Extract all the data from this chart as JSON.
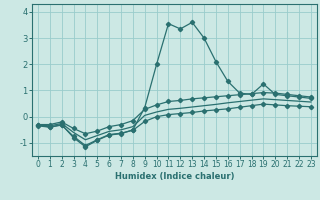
{
  "xlabel": "Humidex (Indice chaleur)",
  "bg_color": "#cce8e4",
  "grid_color": "#99cccc",
  "line_color": "#2a7070",
  "x_values": [
    0,
    1,
    2,
    3,
    4,
    5,
    6,
    7,
    8,
    9,
    10,
    11,
    12,
    13,
    14,
    15,
    16,
    17,
    18,
    19,
    20,
    21,
    22,
    23
  ],
  "series": {
    "main": [
      -0.3,
      -0.4,
      -0.3,
      -0.8,
      -1.15,
      -0.9,
      -0.7,
      -0.65,
      -0.5,
      0.35,
      2.0,
      3.55,
      3.35,
      3.6,
      3.0,
      2.1,
      1.35,
      0.9,
      0.85,
      1.25,
      0.85,
      0.8,
      0.75,
      0.7
    ],
    "upper": [
      -0.3,
      -0.3,
      -0.2,
      -0.45,
      -0.65,
      -0.55,
      -0.38,
      -0.3,
      -0.15,
      0.28,
      0.45,
      0.58,
      0.62,
      0.68,
      0.72,
      0.76,
      0.8,
      0.84,
      0.88,
      0.92,
      0.9,
      0.85,
      0.8,
      0.75
    ],
    "middle": [
      -0.32,
      -0.35,
      -0.26,
      -0.6,
      -0.88,
      -0.72,
      -0.56,
      -0.5,
      -0.38,
      0.05,
      0.18,
      0.28,
      0.32,
      0.37,
      0.42,
      0.47,
      0.53,
      0.58,
      0.63,
      0.68,
      0.65,
      0.62,
      0.59,
      0.56
    ],
    "lower": [
      -0.35,
      -0.4,
      -0.32,
      -0.75,
      -1.1,
      -0.88,
      -0.68,
      -0.63,
      -0.52,
      -0.18,
      0.0,
      0.08,
      0.12,
      0.16,
      0.22,
      0.26,
      0.3,
      0.36,
      0.42,
      0.48,
      0.45,
      0.42,
      0.4,
      0.38
    ]
  },
  "ylim": [
    -1.5,
    4.3
  ],
  "xlim": [
    -0.5,
    23.5
  ],
  "yticks": [
    -1,
    0,
    1,
    2,
    3,
    4
  ],
  "xticks": [
    0,
    1,
    2,
    3,
    4,
    5,
    6,
    7,
    8,
    9,
    10,
    11,
    12,
    13,
    14,
    15,
    16,
    17,
    18,
    19,
    20,
    21,
    22,
    23
  ],
  "marker": "D",
  "markersize": 2.2,
  "linewidth": 0.9,
  "tick_fontsize": 5.5,
  "xlabel_fontsize": 6.0
}
